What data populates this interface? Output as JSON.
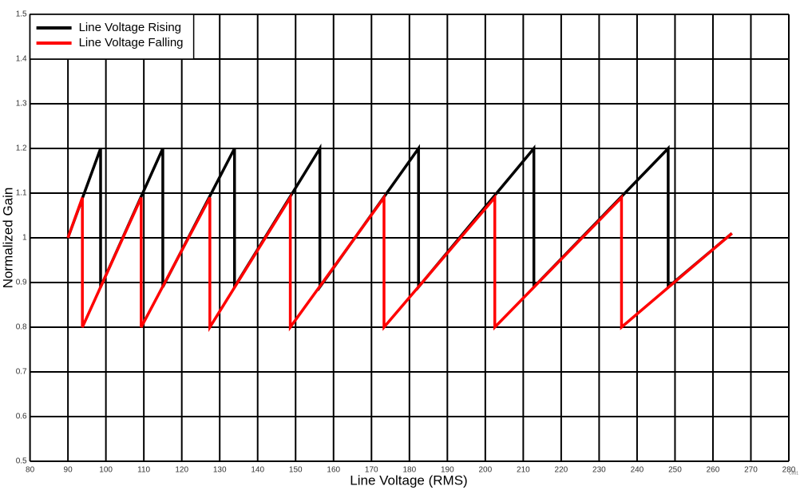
{
  "chart_data": {
    "type": "line",
    "x_label": "Line Voltage (RMS)",
    "y_label": "Normalized Gain",
    "note": "C001",
    "xlim": [
      80,
      280
    ],
    "ylim": [
      0.5,
      1.5
    ],
    "xticks": [
      80,
      90,
      100,
      110,
      120,
      130,
      140,
      150,
      160,
      170,
      180,
      190,
      200,
      210,
      220,
      230,
      240,
      250,
      260,
      270,
      280
    ],
    "yticks": [
      0.5,
      0.6,
      0.7,
      0.8,
      0.9,
      1,
      1.1,
      1.2,
      1.3,
      1.4,
      1.5
    ],
    "grid": true,
    "legend": "upper left",
    "series": [
      {
        "name": "Line Voltage Rising",
        "color": "#000000",
        "x": [
          90,
          98.6,
          98.6,
          115,
          115,
          133.9,
          133.9,
          156.4,
          156.4,
          182.4,
          182.4,
          212.8,
          212.8,
          248.2,
          248.2,
          265
        ],
        "values": [
          1.0,
          1.2,
          0.89,
          1.2,
          0.89,
          1.2,
          0.89,
          1.2,
          0.89,
          1.2,
          0.89,
          1.2,
          0.89,
          1.2,
          0.89,
          1.01
        ]
      },
      {
        "name": "Line Voltage Falling",
        "color": "#ff0000",
        "x": [
          90,
          93.8,
          93.8,
          109.3,
          109.3,
          127.4,
          127.4,
          148.6,
          148.6,
          173.3,
          173.3,
          202.5,
          202.5,
          235.9,
          235.9,
          265
        ],
        "values": [
          1.0,
          1.09,
          0.8,
          1.09,
          0.8,
          1.09,
          0.8,
          1.09,
          0.8,
          1.09,
          0.8,
          1.09,
          0.8,
          1.09,
          0.8,
          1.01
        ]
      }
    ]
  }
}
